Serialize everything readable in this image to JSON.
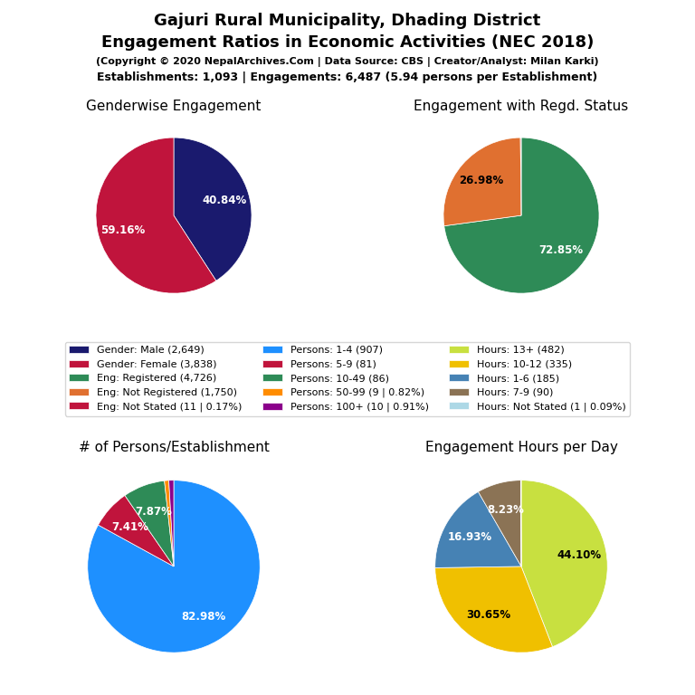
{
  "title": "Gajuri Rural Municipality, Dhading District",
  "subtitle": "Engagement Ratios in Economic Activities (NEC 2018)",
  "annotations": [
    "(Copyright © 2020 NepalArchives.Com | Data Source: CBS | Creator/Analyst: Milan Karki)",
    "Establishments: 1,093 | Engagements: 6,487 (5.94 persons per Establishment)"
  ],
  "chart_data": [
    {
      "type": "pie",
      "title": "Genderwise Engagement",
      "categories": [
        "Gender: Male (2,649)",
        "Gender: Female (3,838)"
      ],
      "values": [
        40.84,
        59.16
      ],
      "value_labels": [
        "40.84%",
        "59.16%"
      ],
      "colors": [
        "#1a1a6e",
        "#c0143c"
      ],
      "data_labels": true
    },
    {
      "type": "pie",
      "title": "Engagement with Regd. Status",
      "categories": [
        "Eng: Registered (4,726)",
        "Eng: Not Registered (1,750)",
        "Eng: Not Stated (11 | 0.17%)"
      ],
      "values": [
        72.85,
        26.98,
        0.17
      ],
      "value_labels": [
        "72.85%",
        "26.98%",
        null
      ],
      "colors": [
        "#2e8b57",
        "#e07030",
        "#c0143c"
      ],
      "data_labels": true
    },
    {
      "type": "pie",
      "title": "# of Persons/Establishment",
      "categories": [
        "Persons: 1-4 (907)",
        "Persons: 5-9 (81)",
        "Persons: 10-49 (86)",
        "Persons: 50-99 (9 | 0.82%)",
        "Persons: 100+ (10 | 0.91%)"
      ],
      "values": [
        82.98,
        7.41,
        7.87,
        0.82,
        0.91
      ],
      "value_labels": [
        "82.98%",
        "7.41%",
        "7.87%",
        null,
        null
      ],
      "colors": [
        "#1e90ff",
        "#c0143c",
        "#2e8b57",
        "#ff8c00",
        "#8b008b"
      ],
      "data_labels": true
    },
    {
      "type": "pie",
      "title": "Engagement Hours per Day",
      "categories": [
        "Hours: 13+ (482)",
        "Hours: 10-12 (335)",
        "Hours: 1-6 (185)",
        "Hours: 7-9 (90)",
        "Hours: Not Stated (1 | 0.09%)"
      ],
      "values": [
        44.1,
        30.65,
        16.93,
        8.23,
        0.09
      ],
      "value_labels": [
        "44.10%",
        "30.65%",
        "16.93%",
        "8.23%",
        null
      ],
      "colors": [
        "#c8e040",
        "#f0c000",
        "#4682b4",
        "#8b7355",
        "#add8e6"
      ],
      "data_labels": true
    }
  ]
}
